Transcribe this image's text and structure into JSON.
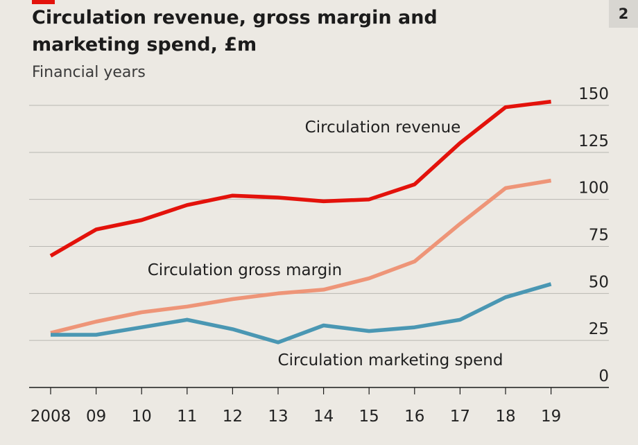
{
  "chart_data": {
    "type": "line",
    "title": "Circulation revenue, gross margin and marketing spend, £m",
    "subtitle": "Financial years",
    "panel_number": "2",
    "x": [
      "2008",
      "09",
      "10",
      "11",
      "12",
      "13",
      "14",
      "15",
      "16",
      "17",
      "18",
      "19"
    ],
    "ylim": [
      0,
      150
    ],
    "yticks": [
      0,
      25,
      50,
      75,
      100,
      125,
      150
    ],
    "y_axis_side": "right",
    "grid": true,
    "series": [
      {
        "name": "Circulation revenue",
        "color": "#e3120b",
        "values": [
          70,
          84,
          89,
          97,
          102,
          101,
          99,
          100,
          108,
          130,
          149,
          152
        ]
      },
      {
        "name": "Circulation gross margin",
        "color": "#ee9578",
        "values": [
          29,
          35,
          40,
          43,
          47,
          50,
          52,
          58,
          67,
          87,
          106,
          110
        ]
      },
      {
        "name": "Circulation marketing spend",
        "color": "#4a97b3",
        "values": [
          28,
          28,
          32,
          36,
          31,
          24,
          33,
          30,
          32,
          36,
          48,
          55
        ]
      }
    ]
  }
}
